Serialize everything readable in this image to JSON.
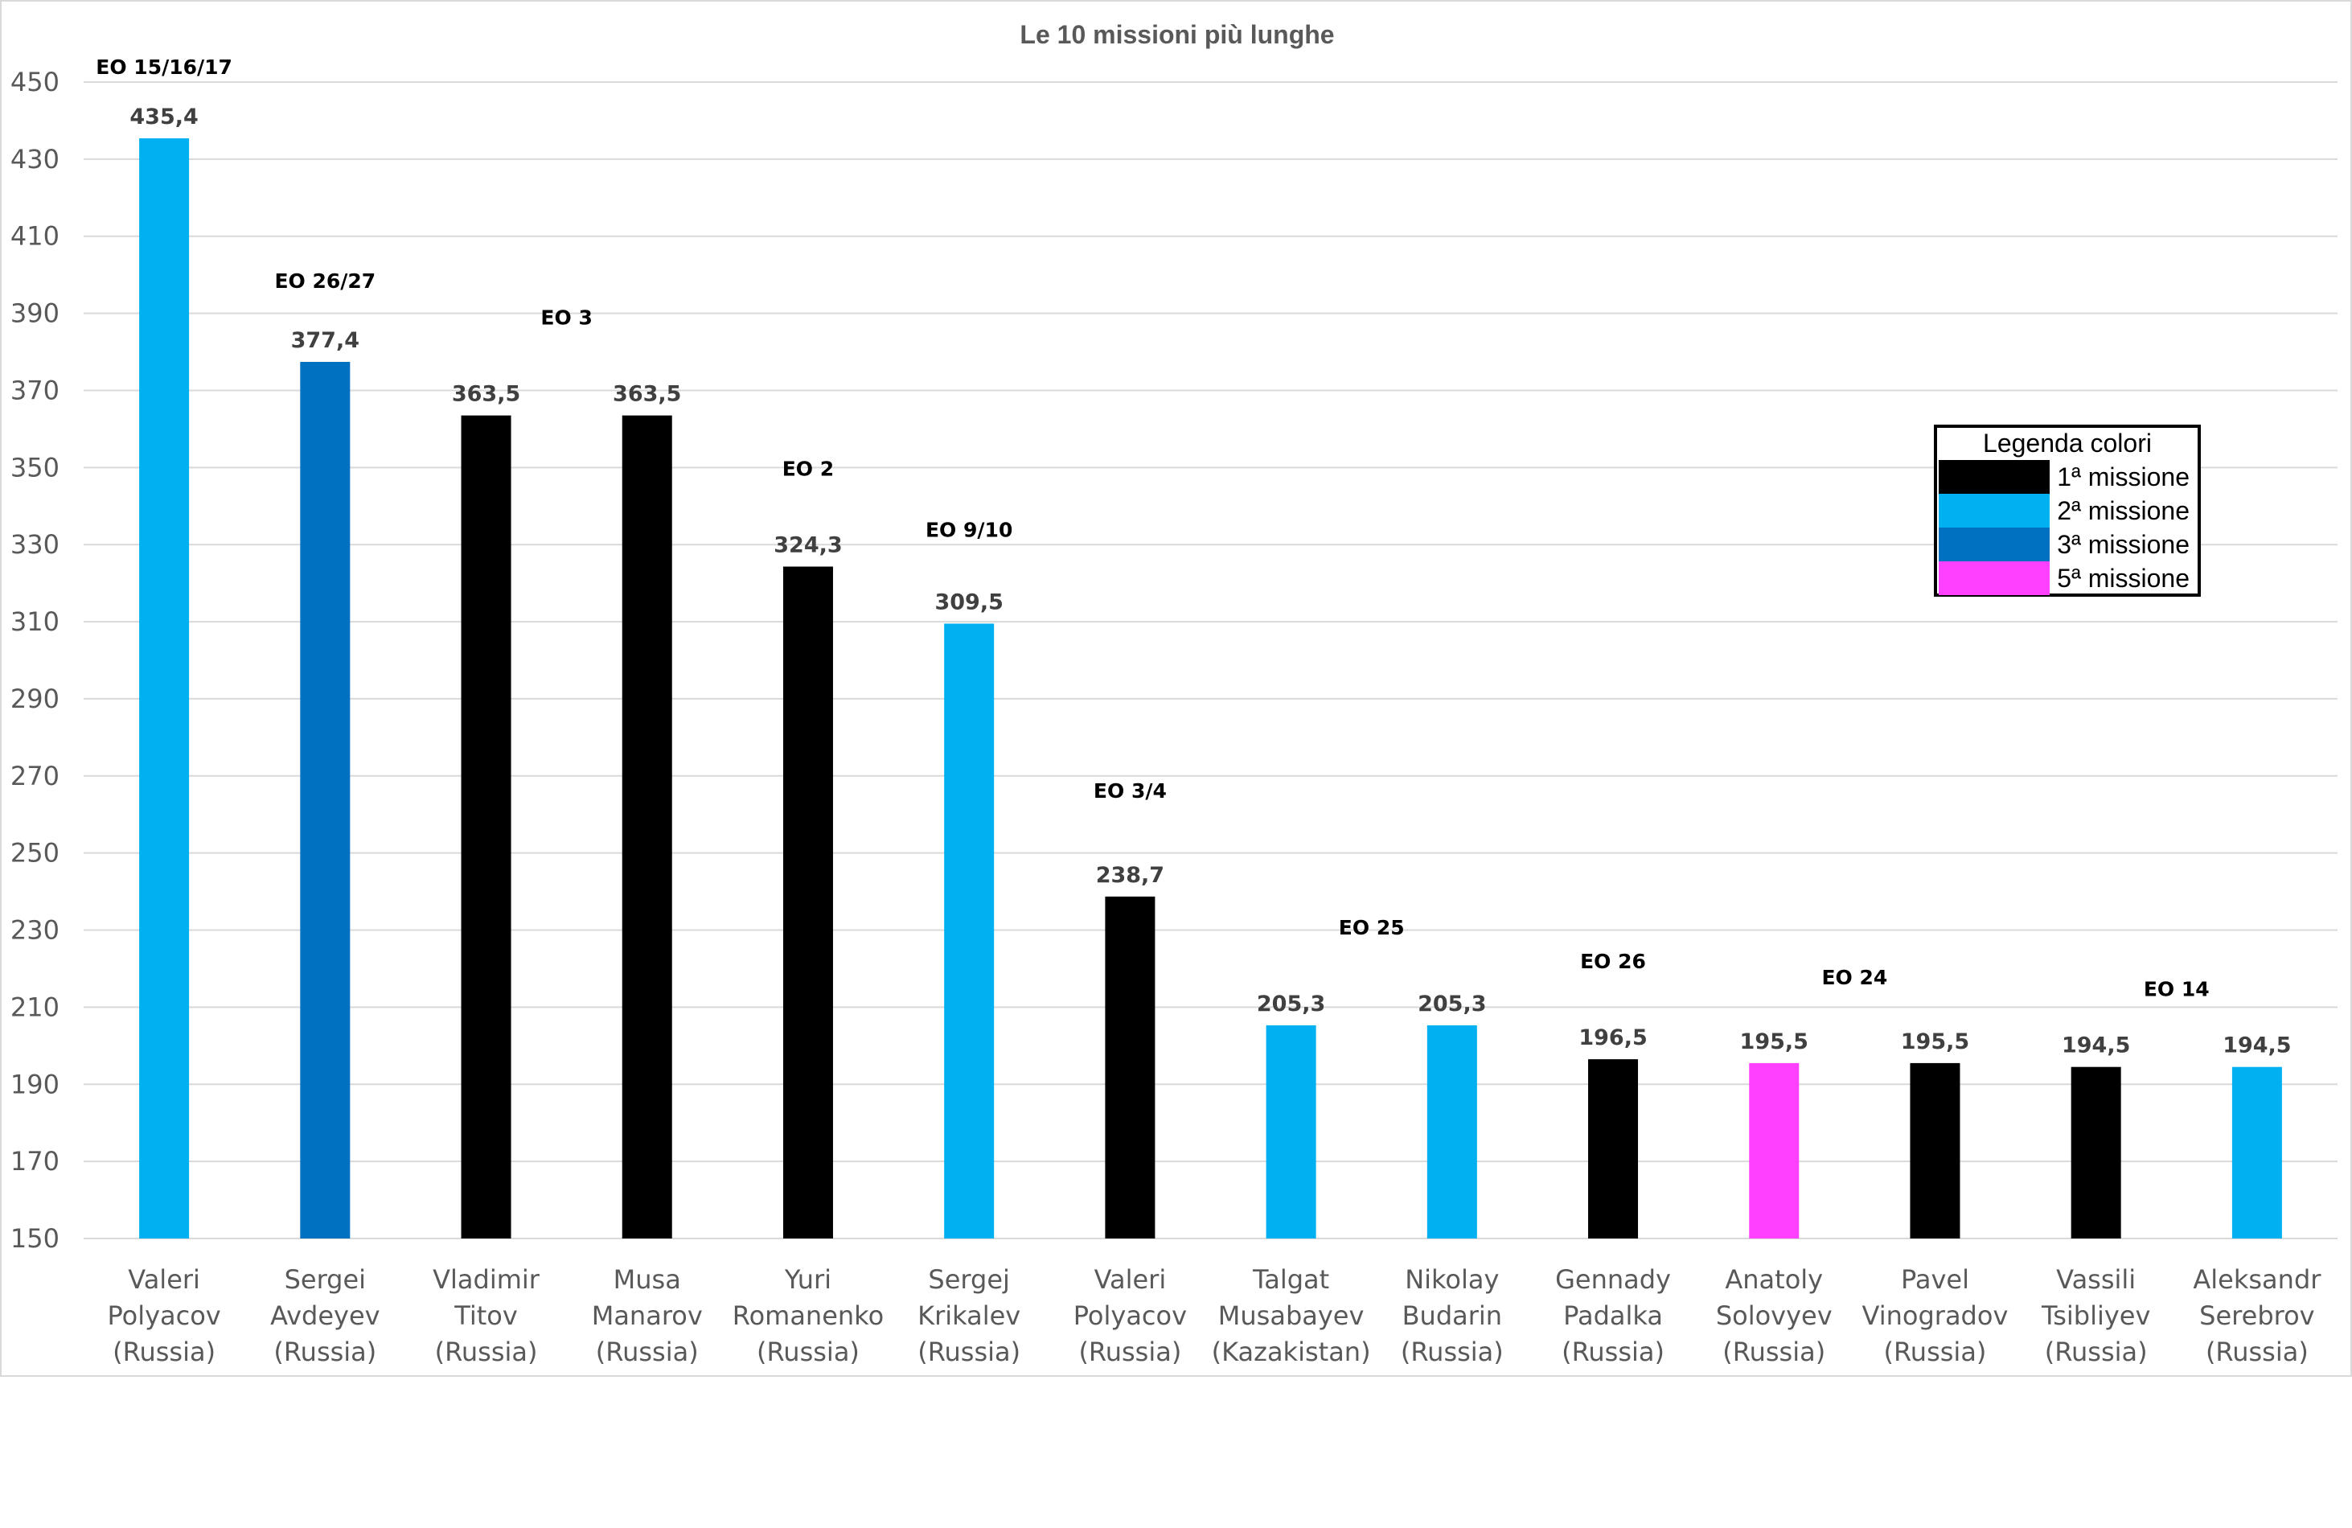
{
  "chart_data": {
    "type": "bar",
    "title": "Le 10 missioni più lunghe",
    "xlabel": "",
    "ylabel": "",
    "ylim": [
      150,
      450
    ],
    "yticks": [
      150,
      170,
      190,
      210,
      230,
      250,
      270,
      290,
      310,
      330,
      350,
      370,
      390,
      410,
      430,
      450
    ],
    "grid": true,
    "categories": [
      [
        "Valeri",
        "Polyacov",
        "(Russia)"
      ],
      [
        "Sergei",
        "Avdeyev",
        "(Russia)"
      ],
      [
        "Vladimir",
        "Titov",
        "(Russia)"
      ],
      [
        "Musa",
        "Manarov",
        "(Russia)"
      ],
      [
        "Yuri",
        "Romanenko",
        "(Russia)"
      ],
      [
        "Sergej",
        "Krikalev",
        "(Russia)"
      ],
      [
        "Valeri",
        "Polyacov",
        "(Russia)"
      ],
      [
        "Talgat",
        "Musabayev",
        "(Kazakistan)"
      ],
      [
        "Nikolay",
        "Budarin",
        "(Russia)"
      ],
      [
        "Gennady",
        "Padalka",
        "(Russia)"
      ],
      [
        "Anatoly",
        "Solovyev",
        "(Russia)"
      ],
      [
        "Pavel",
        "Vinogradov",
        "(Russia)"
      ],
      [
        "Vassili",
        "Tsibliyev",
        "(Russia)"
      ],
      [
        "Aleksandr",
        "Serebrov",
        "(Russia)"
      ]
    ],
    "values": [
      435.4,
      377.4,
      363.5,
      363.5,
      324.3,
      309.5,
      238.7,
      205.3,
      205.3,
      196.5,
      195.5,
      195.5,
      194.5,
      194.5
    ],
    "value_labels": [
      "435,4",
      "377,4",
      "363,5",
      "363,5",
      "324,3",
      "309,5",
      "238,7",
      "205,3",
      "205,3",
      "196,5",
      "195,5",
      "195,5",
      "194,5",
      "194,5"
    ],
    "mission_number": [
      2,
      3,
      1,
      1,
      1,
      2,
      1,
      2,
      2,
      1,
      5,
      1,
      1,
      2
    ],
    "mission_labels": [
      {
        "text": "EO 15/16/17",
        "between": [
          0,
          0
        ]
      },
      {
        "text": "EO 26/27",
        "between": [
          1,
          1
        ]
      },
      {
        "text": "EO 3",
        "between": [
          2,
          3
        ]
      },
      {
        "text": "EO 2",
        "between": [
          4,
          4
        ]
      },
      {
        "text": "EO 9/10",
        "between": [
          5,
          5
        ]
      },
      {
        "text": "EO 3/4",
        "between": [
          6,
          6
        ]
      },
      {
        "text": "EO 25",
        "between": [
          7,
          8
        ]
      },
      {
        "text": "EO 26",
        "between": [
          9,
          9
        ]
      },
      {
        "text": "EO 24",
        "between": [
          10,
          11
        ]
      },
      {
        "text": "EO 14",
        "between": [
          12,
          13
        ]
      }
    ],
    "legend": {
      "title": "Legenda colori",
      "placement": "top-right",
      "entries": [
        {
          "label": "1ª missione",
          "mission": 1,
          "color": "#000000"
        },
        {
          "label": "2ª missione",
          "mission": 2,
          "color": "#00b0f0"
        },
        {
          "label": "3ª missione",
          "mission": 3,
          "color": "#0070c0"
        },
        {
          "label": "5ª missione",
          "mission": 5,
          "color": "#ff40ff"
        }
      ]
    }
  }
}
